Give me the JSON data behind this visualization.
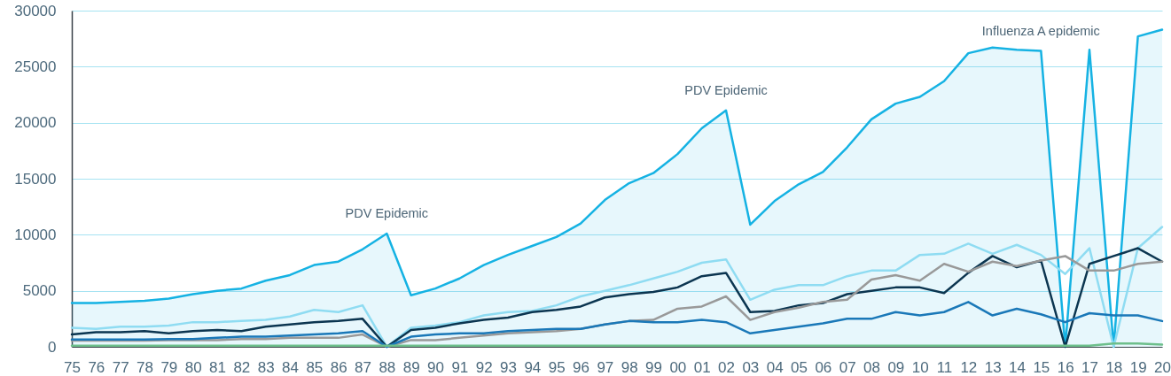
{
  "chart_data": {
    "type": "line",
    "categories": [
      "75",
      "76",
      "77",
      "78",
      "79",
      "80",
      "81",
      "82",
      "83",
      "84",
      "85",
      "86",
      "87",
      "88",
      "89",
      "90",
      "91",
      "92",
      "93",
      "94",
      "95",
      "96",
      "97",
      "98",
      "99",
      "00",
      "01",
      "02",
      "03",
      "04",
      "05",
      "06",
      "07",
      "08",
      "09",
      "10",
      "11",
      "12",
      "13",
      "14",
      "15",
      "16",
      "17",
      "18",
      "19",
      "20"
    ],
    "series": [
      {
        "type": "area",
        "color": "#15b2e3",
        "values": [
          3900,
          3900,
          4000,
          4100,
          4300,
          4700,
          5000,
          5200,
          5900,
          6400,
          7300,
          7600,
          8700,
          10100,
          4600,
          5200,
          6100,
          7300,
          8200,
          9000,
          9800,
          11000,
          13100,
          14600,
          15500,
          17200,
          19500,
          21100,
          10900,
          13000,
          14500,
          15600,
          17800,
          20300,
          21700,
          22300,
          23700,
          26200,
          26700,
          26500,
          26400,
          0,
          26500,
          0,
          27700,
          28300
        ]
      },
      {
        "color": "#8fdcf2",
        "values": [
          1700,
          1600,
          1800,
          1800,
          1900,
          2200,
          2200,
          2300,
          2400,
          2700,
          3300,
          3100,
          3700,
          0,
          1700,
          1900,
          2200,
          2800,
          3100,
          3200,
          3700,
          4500,
          5000,
          5500,
          6100,
          6700,
          7500,
          7800,
          4200,
          5100,
          5500,
          5500,
          6300,
          6800,
          6800,
          8200,
          8300,
          9200,
          8300,
          9100,
          8200,
          6500,
          8800,
          0,
          8800,
          10700
        ]
      },
      {
        "color": "#0b3550",
        "values": [
          1100,
          1300,
          1300,
          1400,
          1200,
          1400,
          1500,
          1400,
          1800,
          2000,
          2200,
          2300,
          2500,
          0,
          1500,
          1700,
          2100,
          2400,
          2600,
          3100,
          3300,
          3600,
          4400,
          4700,
          4900,
          5300,
          6300,
          6600,
          3100,
          3200,
          3700,
          3900,
          4700,
          5000,
          5300,
          5300,
          4800,
          6600,
          8100,
          7100,
          7700,
          0,
          7400,
          8100,
          8800,
          7600
        ]
      },
      {
        "color": "#999999",
        "values": [
          550,
          550,
          550,
          550,
          600,
          600,
          600,
          700,
          700,
          800,
          800,
          800,
          1100,
          0,
          600,
          600,
          800,
          1000,
          1200,
          1300,
          1400,
          1600,
          2000,
          2300,
          2400,
          3400,
          3600,
          4500,
          2400,
          3100,
          3500,
          4000,
          4200,
          6000,
          6400,
          5900,
          7400,
          6700,
          7600,
          7200,
          7700,
          8100,
          6800,
          6800,
          7400,
          7600
        ]
      },
      {
        "color": "#1a78b8",
        "values": [
          650,
          650,
          650,
          650,
          700,
          700,
          800,
          900,
          900,
          1000,
          1100,
          1200,
          1400,
          0,
          900,
          1100,
          1200,
          1200,
          1400,
          1500,
          1600,
          1600,
          2000,
          2300,
          2200,
          2200,
          2400,
          2200,
          1200,
          1500,
          1800,
          2100,
          2500,
          2500,
          3100,
          2800,
          3100,
          4000,
          2800,
          3400,
          2900,
          2200,
          3000,
          2800,
          2800,
          2300
        ]
      },
      {
        "color": "#6dbf8b",
        "values": [
          100,
          100,
          100,
          100,
          100,
          100,
          100,
          100,
          100,
          100,
          100,
          100,
          100,
          100,
          100,
          100,
          100,
          100,
          100,
          100,
          100,
          100,
          100,
          100,
          100,
          100,
          100,
          100,
          100,
          100,
          100,
          100,
          100,
          100,
          100,
          100,
          100,
          100,
          100,
          100,
          100,
          100,
          100,
          300,
          300,
          200
        ]
      }
    ],
    "ylim": [
      0,
      30000
    ],
    "yticks": [
      0,
      5000,
      10000,
      15000,
      20000,
      25000,
      30000
    ],
    "grid": "y",
    "annotations": [
      {
        "text": "PDV Epidemic",
        "x": "88",
        "y": 10100
      },
      {
        "text": "PDV Epidemic",
        "x": "02",
        "y": 21100
      },
      {
        "text": "Influenza A epidemic",
        "x": "15",
        "y": 26400
      }
    ]
  }
}
